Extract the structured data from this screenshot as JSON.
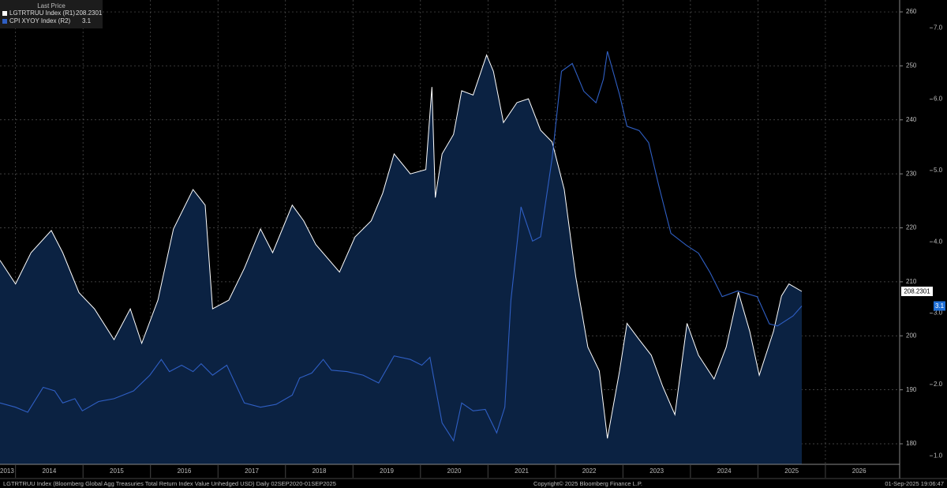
{
  "chart_data": {
    "type": "line",
    "legend_title": "Last Price",
    "xlim": [
      2013.77,
      2027.1
    ],
    "xticks": [
      2013,
      2014,
      2015,
      2016,
      2017,
      2018,
      2019,
      2020,
      2021,
      2022,
      2023,
      2024,
      2025,
      2026
    ],
    "ylim": [
      176.2,
      262.2
    ],
    "yticks": [
      180,
      190,
      200,
      210,
      220,
      230,
      240,
      250,
      260
    ],
    "y2lim": [
      0.88,
      7.39
    ],
    "y2ticks": [
      {
        "value": 1,
        "label": "1.0"
      },
      {
        "value": 2,
        "label": "2.0"
      },
      {
        "value": 3,
        "label": "3.0"
      },
      {
        "value": 4,
        "label": "4.0"
      },
      {
        "value": 5,
        "label": "5.0"
      },
      {
        "value": 6,
        "label": "6.0"
      },
      {
        "value": 7,
        "label": "7.0"
      }
    ],
    "grid": true,
    "series": [
      {
        "name": "LGTRTRUU Index (R1)",
        "color": "#ffffff",
        "fill": "#0b2242",
        "axis": "y",
        "x": [
          2013.77,
          2014.0,
          2014.23,
          2014.53,
          2014.7,
          2014.94,
          2015.17,
          2015.46,
          2015.7,
          2015.87,
          2016.11,
          2016.34,
          2016.63,
          2016.81,
          2016.92,
          2017.16,
          2017.39,
          2017.63,
          2017.81,
          2018.1,
          2018.27,
          2018.45,
          2018.8,
          2019.03,
          2019.27,
          2019.44,
          2019.61,
          2019.85,
          2020.08,
          2020.17,
          2020.22,
          2020.32,
          2020.49,
          2020.61,
          2020.78,
          2020.98,
          2021.08,
          2021.23,
          2021.43,
          2021.6,
          2021.78,
          2021.95,
          2022.13,
          2022.3,
          2022.48,
          2022.65,
          2022.77,
          2022.95,
          2023.06,
          2023.24,
          2023.42,
          2023.59,
          2023.77,
          2023.95,
          2024.12,
          2024.35,
          2024.53,
          2024.71,
          2024.88,
          2025.02,
          2025.23,
          2025.35,
          2025.46,
          2025.65
        ],
        "values": [
          214,
          209.6,
          215.4,
          219.5,
          215.4,
          208,
          205,
          199.3,
          205,
          198.6,
          206.6,
          219.8,
          227.1,
          224.2,
          205,
          206.6,
          212.5,
          219.8,
          215.4,
          224.2,
          221.3,
          216.9,
          211.8,
          218.3,
          221.3,
          226.4,
          233.7,
          230,
          230.8,
          246.1,
          225.6,
          233.7,
          237.3,
          245.4,
          244.6,
          252,
          249,
          239.5,
          243.2,
          243.9,
          238.1,
          235.9,
          227.1,
          211,
          197.9,
          193.5,
          181,
          193.5,
          202.3,
          199.3,
          196.4,
          190.6,
          185.4,
          202.3,
          196.4,
          192,
          197.9,
          208.1,
          200.8,
          192.7,
          200.8,
          207.4,
          209.6,
          208.2301
        ]
      },
      {
        "name": "CPI XYOY Index (R2)",
        "color": "#2f5fc4",
        "axis": "y2",
        "x": [
          2013.77,
          2014.0,
          2014.18,
          2014.41,
          2014.58,
          2014.7,
          2014.88,
          2014.99,
          2015.23,
          2015.46,
          2015.75,
          2015.99,
          2016.16,
          2016.28,
          2016.46,
          2016.63,
          2016.75,
          2016.92,
          2017.13,
          2017.39,
          2017.63,
          2017.86,
          2018.1,
          2018.21,
          2018.39,
          2018.56,
          2018.68,
          2018.91,
          2019.15,
          2019.38,
          2019.61,
          2019.85,
          2020.02,
          2020.14,
          2020.32,
          2020.49,
          2020.61,
          2020.78,
          2020.96,
          2021.13,
          2021.25,
          2021.34,
          2021.49,
          2021.66,
          2021.78,
          2021.95,
          2022.09,
          2022.25,
          2022.42,
          2022.6,
          2022.71,
          2022.77,
          2022.95,
          2023.06,
          2023.24,
          2023.38,
          2023.53,
          2023.71,
          2023.94,
          2024.12,
          2024.29,
          2024.47,
          2024.7,
          2024.99,
          2025.17,
          2025.29,
          2025.52,
          2025.65
        ],
        "values": [
          1.74,
          1.68,
          1.61,
          1.96,
          1.91,
          1.74,
          1.8,
          1.63,
          1.76,
          1.8,
          1.91,
          2.13,
          2.35,
          2.18,
          2.27,
          2.18,
          2.29,
          2.13,
          2.27,
          1.74,
          1.68,
          1.72,
          1.85,
          2.09,
          2.16,
          2.35,
          2.2,
          2.18,
          2.13,
          2.02,
          2.4,
          2.35,
          2.27,
          2.38,
          1.46,
          1.21,
          1.74,
          1.63,
          1.65,
          1.32,
          1.68,
          3.18,
          4.49,
          4.01,
          4.07,
          5.17,
          6.39,
          6.5,
          6.11,
          5.95,
          6.28,
          6.67,
          6.06,
          5.62,
          5.56,
          5.39,
          4.79,
          4.12,
          3.95,
          3.84,
          3.57,
          3.23,
          3.31,
          3.23,
          2.85,
          2.82,
          2.96,
          3.1
        ]
      }
    ],
    "footer": {
      "description": "LGTRTRUU Index (Bloomberg Global Agg Treasuries Total Return Index Value Unhedged USD)  Daily 02SEP2020-01SEP2025",
      "copyright": "Copyright© 2025 Bloomberg Finance L.P.",
      "timestamp": "01-Sep-2025 19:06:47"
    }
  }
}
